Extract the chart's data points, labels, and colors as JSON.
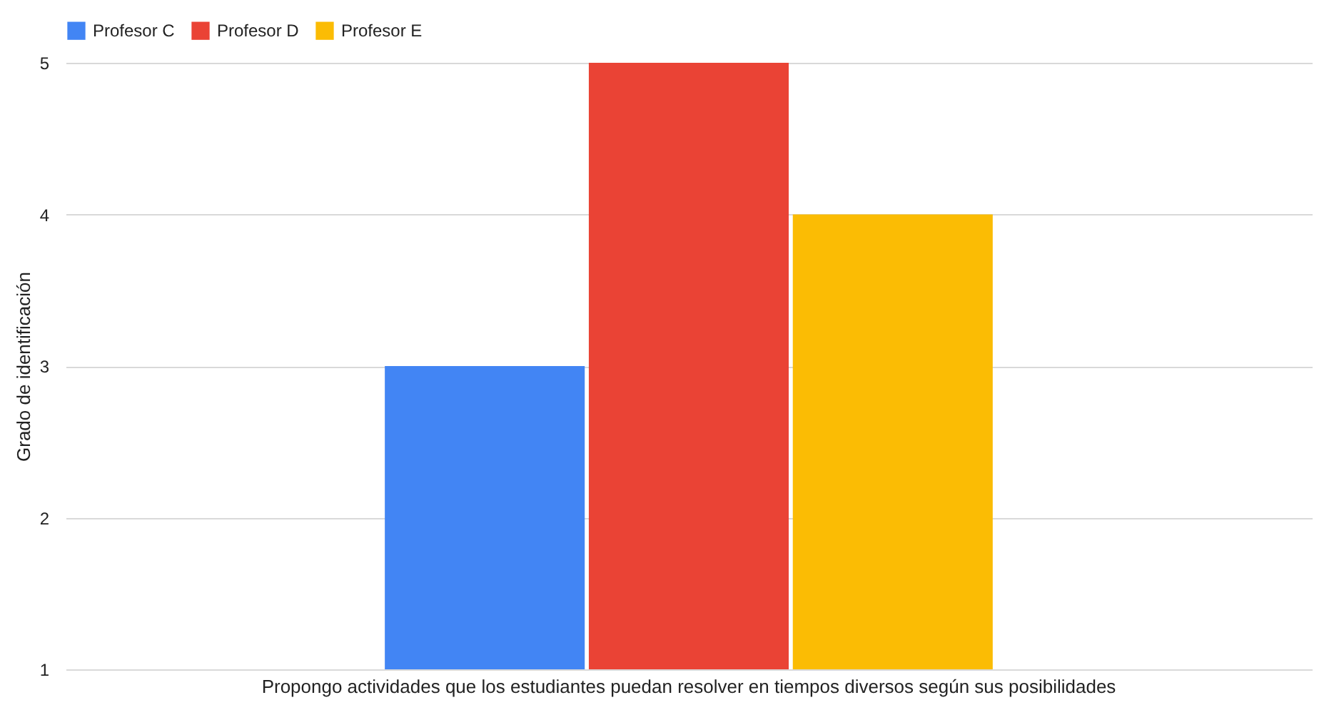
{
  "chart_data": {
    "type": "bar",
    "categories": [
      "Propongo actividades que los estudiantes puedan resolver en tiempos diversos según sus posibilidades"
    ],
    "series": [
      {
        "name": "Profesor C",
        "color": "#4285f4",
        "values": [
          3
        ]
      },
      {
        "name": "Profesor D",
        "color": "#ea4335",
        "values": [
          5
        ]
      },
      {
        "name": "Profesor E",
        "color": "#fbbc04",
        "values": [
          4
        ]
      }
    ],
    "ylabel": "Grado de identificación",
    "ylim": [
      1,
      5
    ],
    "yticks": [
      1,
      2,
      3,
      4,
      5
    ],
    "grid": "y",
    "legend": "top"
  }
}
